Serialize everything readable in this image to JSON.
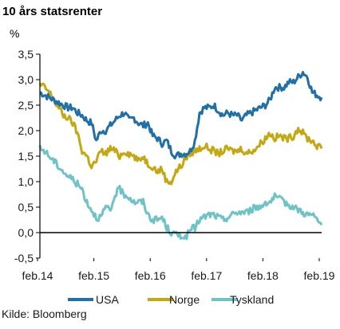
{
  "chart_data": {
    "type": "line",
    "title": "10 års statsrenter",
    "unit_label": "%",
    "source": "Kilde: Bloomberg",
    "xlabel": "",
    "ylabel": "",
    "x_ticks": [
      "feb.14",
      "feb.15",
      "feb.16",
      "feb.17",
      "feb.18",
      "feb.19"
    ],
    "x_range": [
      0,
      60
    ],
    "ylim": [
      -0.5,
      3.5
    ],
    "y_ticks": [
      "3,5",
      "3,0",
      "2,5",
      "2,0",
      "1,5",
      "1,0",
      "0,5",
      "0,0",
      "-0,5"
    ],
    "y_tick_values": [
      3.5,
      3.0,
      2.5,
      2.0,
      1.5,
      1.0,
      0.5,
      0.0,
      -0.5
    ],
    "grid": false,
    "legend_position": "bottom",
    "x": [
      0,
      1,
      2,
      3,
      4,
      5,
      6,
      7,
      8,
      9,
      10,
      11,
      12,
      13,
      14,
      15,
      16,
      17,
      18,
      19,
      20,
      21,
      22,
      23,
      24,
      25,
      26,
      27,
      28,
      29,
      30,
      31,
      32,
      33,
      34,
      35,
      36,
      37,
      38,
      39,
      40,
      41,
      42,
      43,
      44,
      45,
      46,
      47,
      48,
      49,
      50,
      51,
      52,
      53,
      54,
      55,
      56,
      57,
      58,
      59,
      60
    ],
    "series": [
      {
        "name": "USA",
        "color": "#1f6fa8",
        "values": [
          2.75,
          2.7,
          2.65,
          2.6,
          2.55,
          2.5,
          2.45,
          2.45,
          2.35,
          2.3,
          2.2,
          2.15,
          1.8,
          2.0,
          2.0,
          2.1,
          2.2,
          2.3,
          2.35,
          2.2,
          2.25,
          2.15,
          2.1,
          2.15,
          1.9,
          1.85,
          1.75,
          1.8,
          1.6,
          1.5,
          1.55,
          1.55,
          1.6,
          1.8,
          2.35,
          2.45,
          2.45,
          2.5,
          2.4,
          2.3,
          2.35,
          2.3,
          2.3,
          2.2,
          2.3,
          2.35,
          2.4,
          2.45,
          2.5,
          2.6,
          2.85,
          2.85,
          2.85,
          2.95,
          2.95,
          3.05,
          3.15,
          3.05,
          2.75,
          2.7,
          2.65
        ]
      },
      {
        "name": "Norge",
        "color": "#c4a812",
        "values": [
          2.9,
          2.85,
          2.75,
          2.6,
          2.45,
          2.3,
          2.25,
          2.15,
          1.95,
          1.6,
          1.5,
          1.3,
          1.4,
          1.6,
          1.55,
          1.65,
          1.6,
          1.5,
          1.6,
          1.55,
          1.5,
          1.4,
          1.5,
          1.35,
          1.3,
          1.2,
          1.25,
          1.0,
          1.0,
          1.2,
          1.3,
          1.45,
          1.55,
          1.6,
          1.65,
          1.7,
          1.65,
          1.6,
          1.55,
          1.6,
          1.65,
          1.6,
          1.6,
          1.65,
          1.55,
          1.6,
          1.65,
          1.75,
          1.85,
          1.95,
          1.85,
          1.9,
          1.85,
          1.85,
          1.9,
          2.05,
          1.95,
          1.85,
          1.8,
          1.7,
          1.65
        ]
      },
      {
        "name": "Tyskland",
        "color": "#6dc3c6",
        "values": [
          1.65,
          1.6,
          1.5,
          1.4,
          1.3,
          1.2,
          1.1,
          1.05,
          0.95,
          0.85,
          0.6,
          0.45,
          0.3,
          0.3,
          0.5,
          0.4,
          0.75,
          0.85,
          0.75,
          0.7,
          0.6,
          0.6,
          0.6,
          0.35,
          0.25,
          0.25,
          0.3,
          0.1,
          0.0,
          -0.05,
          -0.05,
          -0.1,
          0.05,
          0.1,
          0.25,
          0.3,
          0.35,
          0.35,
          0.3,
          0.25,
          0.3,
          0.35,
          0.4,
          0.4,
          0.4,
          0.45,
          0.5,
          0.5,
          0.6,
          0.6,
          0.7,
          0.65,
          0.6,
          0.55,
          0.5,
          0.45,
          0.4,
          0.35,
          0.35,
          0.25,
          0.15
        ]
      }
    ]
  }
}
